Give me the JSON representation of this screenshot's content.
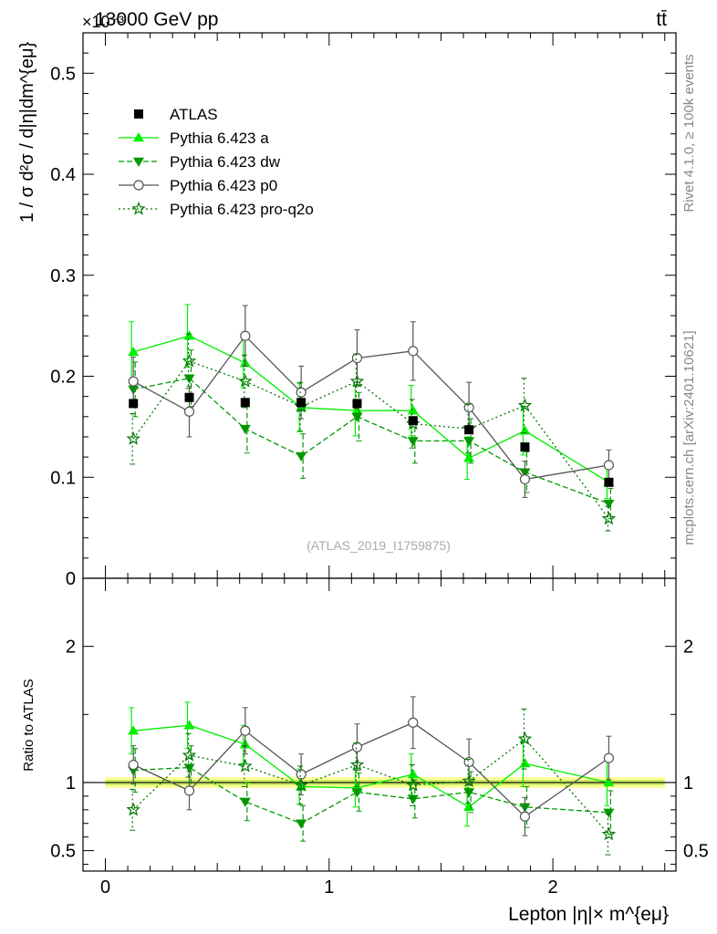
{
  "header": {
    "energy_label": "13000 GeV pp",
    "process_label": "tt̄",
    "exponent_label": "×10⁻³"
  },
  "side_labels": {
    "rivet": "Rivet 4.1.0, ≥ 100k events",
    "mcplots": "mcplots.cern.ch [arXiv:2401.10621]"
  },
  "watermark": "(ATLAS_2019_I1759875)",
  "chart_data": {
    "type": "line",
    "title": "13000 GeV pp",
    "xlabel": "Lepton |η|× m^{eμ}",
    "ylabel": "1 / σ  d²σ / d|η|dm^{eμ}",
    "ratio_ylabel": "Ratio to ATLAS",
    "xlim": [
      -0.1,
      2.55
    ],
    "ylim": [
      0,
      0.54
    ],
    "ratio_ylim": [
      0.35,
      2.5
    ],
    "x_ticks": [
      "0",
      "1",
      "2"
    ],
    "x_tick_values": [
      0,
      1,
      2
    ],
    "y_ticks": [
      "0",
      "0.1",
      "0.2",
      "0.3",
      "0.4",
      "0.5"
    ],
    "y_tick_values": [
      0,
      0.1,
      0.2,
      0.3,
      0.4,
      0.5
    ],
    "ratio_ticks": [
      "0.5",
      "1",
      "2"
    ],
    "ratio_tick_values": [
      0.5,
      1,
      2
    ],
    "x": [
      0.125,
      0.375,
      0.625,
      0.875,
      1.125,
      1.375,
      1.625,
      1.875,
      2.25
    ],
    "data": {
      "name": "ATLAS",
      "values": [
        0.173,
        0.179,
        0.174,
        0.174,
        0.173,
        0.156,
        0.147,
        0.13,
        0.095
      ],
      "band_inner": 0.02,
      "band_outer": 0.04
    },
    "series": [
      {
        "name": "Pythia 6.423 a",
        "color": "#00ee00",
        "dash": "",
        "marker": "triangle-up",
        "values": [
          0.224,
          0.24,
          0.213,
          0.169,
          0.166,
          0.166,
          0.119,
          0.146,
          0.095
        ],
        "errors": [
          0.03,
          0.031,
          0.025,
          0.024,
          0.025,
          0.025,
          0.021,
          0.024,
          0.016
        ],
        "ratio": [
          1.38,
          1.42,
          1.28,
          0.97,
          0.96,
          1.06,
          0.82,
          1.14,
          1.0
        ],
        "ratio_err": [
          0.17,
          0.17,
          0.14,
          0.13,
          0.14,
          0.15,
          0.14,
          0.17,
          0.17
        ]
      },
      {
        "name": "Pythia 6.423 dw",
        "color": "#009900",
        "dash": "6,3",
        "marker": "triangle-down",
        "values": [
          0.187,
          0.198,
          0.148,
          0.121,
          0.16,
          0.136,
          0.136,
          0.105,
          0.074
        ],
        "errors": [
          0.027,
          0.028,
          0.024,
          0.022,
          0.024,
          0.022,
          0.022,
          0.02,
          0.015
        ],
        "ratio": [
          1.09,
          1.11,
          0.86,
          0.7,
          0.93,
          0.88,
          0.93,
          0.82,
          0.78
        ],
        "ratio_err": [
          0.16,
          0.16,
          0.14,
          0.13,
          0.14,
          0.14,
          0.15,
          0.15,
          0.16
        ]
      },
      {
        "name": "Pythia 6.423 p0",
        "color": "#555555",
        "dash": "",
        "marker": "circle-open",
        "values": [
          0.195,
          0.165,
          0.24,
          0.184,
          0.218,
          0.225,
          0.169,
          0.098,
          0.112
        ],
        "errors": [
          0.024,
          0.025,
          0.03,
          0.026,
          0.028,
          0.029,
          0.025,
          0.018,
          0.015
        ],
        "ratio": [
          1.13,
          0.94,
          1.38,
          1.06,
          1.26,
          1.44,
          1.15,
          0.75,
          1.18
        ],
        "ratio_err": [
          0.14,
          0.14,
          0.17,
          0.15,
          0.17,
          0.19,
          0.17,
          0.14,
          0.16
        ]
      },
      {
        "name": "Pythia 6.423 pro-q2o",
        "color": "#007700",
        "dash": "2,3",
        "marker": "star",
        "values": [
          0.138,
          0.215,
          0.195,
          0.17,
          0.195,
          0.153,
          0.148,
          0.171,
          0.059
        ],
        "errors": [
          0.025,
          0.027,
          0.026,
          0.024,
          0.027,
          0.024,
          0.024,
          0.027,
          0.012
        ],
        "ratio": [
          0.8,
          1.2,
          1.12,
          0.98,
          1.13,
          0.98,
          1.01,
          1.32,
          0.62
        ],
        "ratio_err": [
          0.15,
          0.16,
          0.15,
          0.14,
          0.16,
          0.15,
          0.16,
          0.22,
          0.15
        ]
      }
    ]
  }
}
